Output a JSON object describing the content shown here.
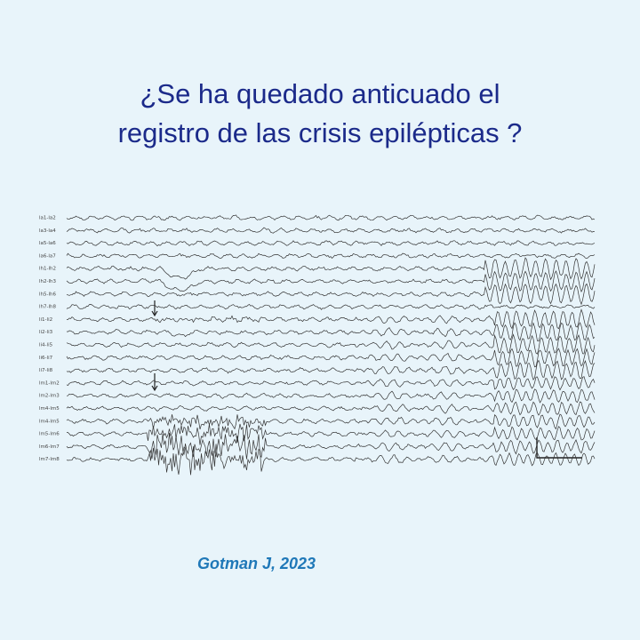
{
  "title": {
    "line1": "¿Se ha quedado anticuado el",
    "line2": "registro de las crisis epilépticas ?"
  },
  "eeg": {
    "channels": [
      "la1-la2",
      "la3-la4",
      "la5-la6",
      "la6-la7",
      "lh1-lh2",
      "lh2-lh3",
      "lh5-lh6",
      "lh7-lh8",
      "li1-li2",
      "li2-li3",
      "li4-li5",
      "li6-li7",
      "li7-li8",
      "lm1-lm2",
      "lm2-lm3",
      "lm4-lm5",
      "lm4-lm5",
      "lm5-lm6",
      "lm6-lm7",
      "lm7-lm8"
    ]
  },
  "citation": "Gotman J, 2023"
}
